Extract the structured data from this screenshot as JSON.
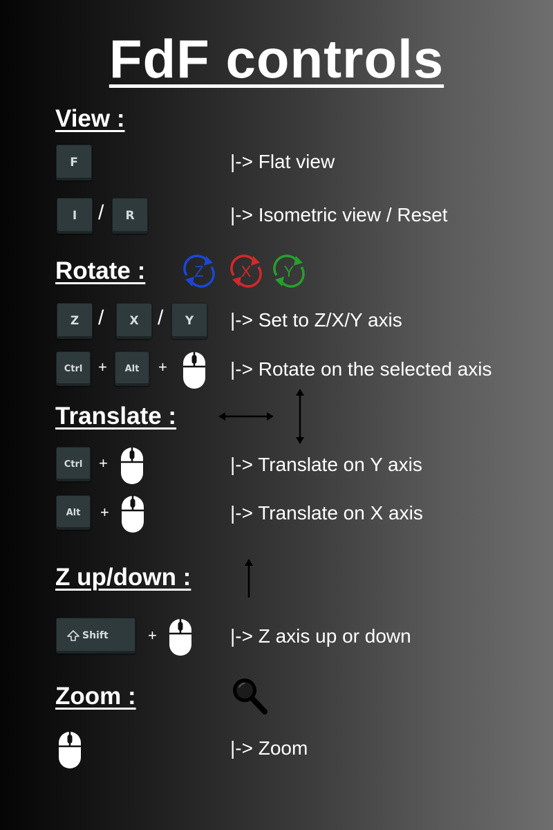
{
  "title": "FdF controls",
  "view": {
    "heading": "View :",
    "key_f": "F",
    "flat_desc": "|-> Flat view",
    "key_i": "I",
    "slash": "/",
    "key_r": "R",
    "iso_desc": "|-> Isometric view / Reset"
  },
  "rotate": {
    "heading": "Rotate :",
    "axis_icons": [
      {
        "label": "Z",
        "color": "#1a47d6"
      },
      {
        "label": "X",
        "color": "#d4282a"
      },
      {
        "label": "Y",
        "color": "#25a02c"
      }
    ],
    "key_z": "Z",
    "key_x": "X",
    "key_y": "Y",
    "slash": "/",
    "set_desc": "|-> Set to Z/X/Y axis",
    "key_ctrl": "Ctrl",
    "key_alt": "Alt",
    "plus": "+",
    "rotate_desc": "|-> Rotate on the selected axis"
  },
  "translate": {
    "heading": "Translate :",
    "key_ctrl": "Ctrl",
    "key_alt": "Alt",
    "plus": "+",
    "y_desc": "|-> Translate on Y axis",
    "x_desc": "|-> Translate on X axis"
  },
  "zupdown": {
    "heading": "Z up/down :",
    "key_shift": "Shift",
    "plus": "+",
    "desc": "|-> Z axis up or down"
  },
  "zoom": {
    "heading": "Zoom :",
    "desc": "|-> Zoom"
  },
  "icons": {
    "mouse": "mouse-icon",
    "magnifier": "magnifier-icon",
    "shift_arrow": "shift-arrow-icon"
  }
}
